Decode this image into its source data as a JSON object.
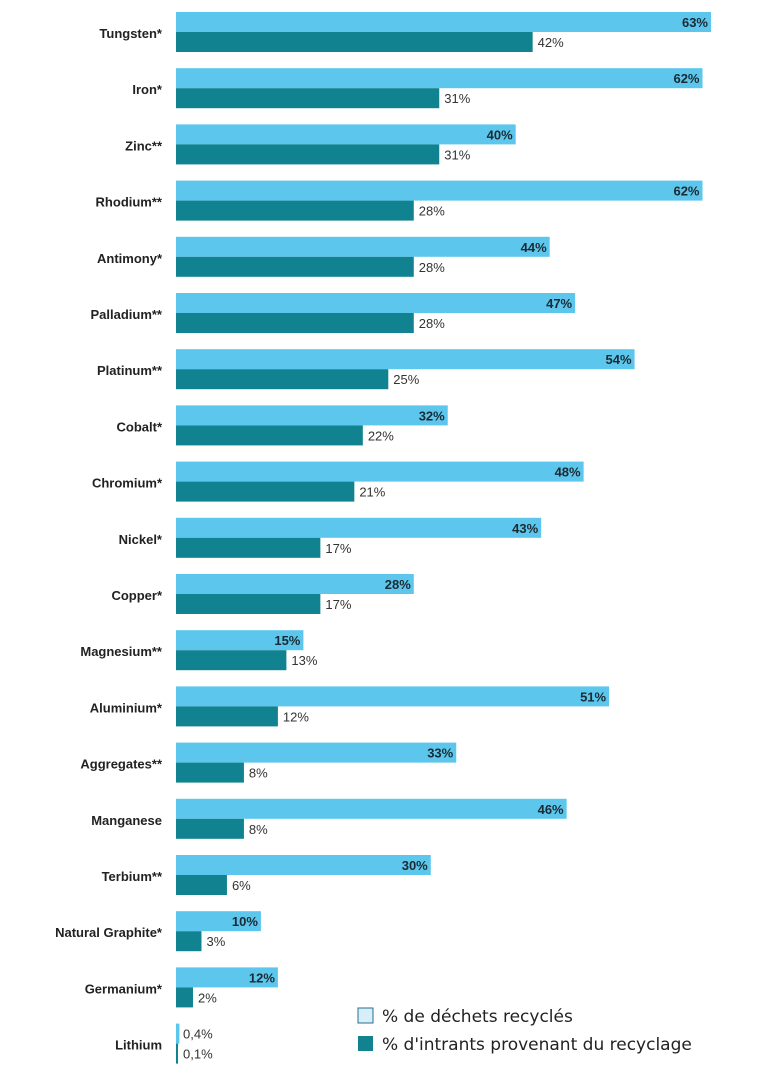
{
  "chart_data": {
    "type": "bar",
    "orientation": "horizontal",
    "categories": [
      "Tungsten*",
      "Iron*",
      "Zinc**",
      "Rhodium**",
      "Antimony*",
      "Palladium**",
      "Platinum**",
      "Cobalt*",
      "Chromium*",
      "Nickel*",
      "Copper*",
      "Magnesium**",
      "Aluminium*",
      "Aggregates**",
      "Manganese",
      "Terbium**",
      "Natural Graphite*",
      "Germanium*",
      "Lithium"
    ],
    "series": [
      {
        "name": "% de déchets recyclés",
        "color": "#5cc6ec",
        "values": [
          63,
          62,
          40,
          62,
          44,
          47,
          54,
          32,
          48,
          43,
          28,
          15,
          51,
          33,
          46,
          30,
          10,
          12,
          0.4
        ],
        "labels": [
          "63%",
          "62%",
          "40%",
          "62%",
          "44%",
          "47%",
          "54%",
          "32%",
          "48%",
          "43%",
          "28%",
          "15%",
          "51%",
          "33%",
          "46%",
          "30%",
          "10%",
          "12%",
          "0,4%"
        ]
      },
      {
        "name": "% d'intrants provenant du recyclage",
        "color": "#11828f",
        "values": [
          42,
          31,
          31,
          28,
          28,
          28,
          25,
          22,
          21,
          17,
          17,
          13,
          12,
          8,
          8,
          6,
          3,
          2,
          0.1
        ],
        "labels": [
          "42%",
          "31%",
          "31%",
          "28%",
          "28%",
          "28%",
          "25%",
          "22%",
          "21%",
          "17%",
          "17%",
          "13%",
          "12%",
          "8%",
          "8%",
          "6%",
          "3%",
          "2%",
          "0,1%"
        ]
      }
    ],
    "xlim": [
      0,
      63
    ],
    "grid": false,
    "legend_position": "bottom-right"
  }
}
